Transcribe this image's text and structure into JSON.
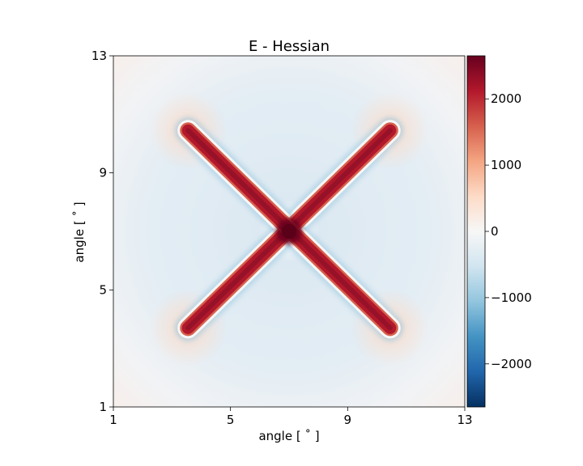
{
  "chart_data": {
    "type": "heatmap",
    "title": "E - Hessian",
    "xlabel": "angle [$^\\circ$]",
    "ylabel": "angle [$^\\circ$]",
    "xlabel_display": "angle [ ˚ ]",
    "ylabel_display": "angle [ ˚ ]",
    "xlim": [
      1,
      13
    ],
    "ylim": [
      1,
      13
    ],
    "xticks": [
      1,
      5,
      9,
      13
    ],
    "yticks": [
      1,
      5,
      9,
      13
    ],
    "colorbar": {
      "colormap": "RdBu_r",
      "range": [
        -2650,
        2650
      ],
      "ticks": [
        -2000,
        -1000,
        0,
        1000,
        2000
      ],
      "tick_labels": [
        "−2000",
        "−1000",
        "0",
        "1000",
        "2000"
      ]
    },
    "features": [
      {
        "kind": "arm",
        "from": [
          3.55,
          3.7
        ],
        "to": [
          10.45,
          10.45
        ],
        "value": 2200
      },
      {
        "kind": "arm",
        "from": [
          3.55,
          10.45
        ],
        "to": [
          10.45,
          3.7
        ],
        "value": 2200
      },
      {
        "kind": "center-peak",
        "at": [
          7.0,
          7.0
        ],
        "value": 2650
      }
    ],
    "grid": false
  },
  "colors": {
    "cmap_stops": [
      "#053061",
      "#2166ac",
      "#4393c3",
      "#92c5de",
      "#d1e5f0",
      "#f7f7f7",
      "#fddbc7",
      "#f4a582",
      "#d6604d",
      "#b2182b",
      "#67001f"
    ],
    "background_negative": "#dbe8f1",
    "background_positive": "#f7e9e2"
  }
}
